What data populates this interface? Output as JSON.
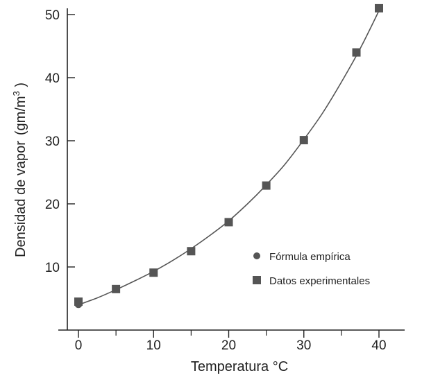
{
  "chart_data": {
    "type": "scatter",
    "xlabel": "Temperatura °C",
    "ylabel": "Densidad de vapor",
    "ylabel_unit_prefix": "(gm/m",
    "ylabel_unit_exp": "3",
    "ylabel_unit_suffix": " )",
    "xlim": [
      0,
      40
    ],
    "ylim": [
      0,
      50
    ],
    "x_ticks": [
      0,
      10,
      20,
      30,
      40
    ],
    "x_minor_ticks": [
      5,
      15,
      25,
      35
    ],
    "y_ticks": [
      10,
      20,
      30,
      40,
      50
    ],
    "grid": false,
    "legend_position": "right",
    "legend": [
      {
        "name": "Fórmula empírica",
        "marker": "circle"
      },
      {
        "name": "Datos experimentales",
        "marker": "square"
      }
    ],
    "series": [
      {
        "name": "Fórmula empírica",
        "type": "line",
        "x": [
          0,
          2.5,
          5,
          7.5,
          10,
          12.5,
          15,
          17.5,
          20,
          22.5,
          25,
          27.5,
          30,
          32.5,
          35,
          37.5,
          40
        ],
        "y": [
          4.0,
          5.1,
          6.4,
          7.8,
          9.3,
          11.0,
          12.9,
          15.0,
          17.3,
          20.0,
          23.0,
          26.3,
          30.2,
          34.4,
          39.3,
          44.6,
          50.6
        ]
      },
      {
        "name": "Datos experimentales",
        "type": "scatter",
        "marker": "square",
        "x": [
          0,
          5,
          10,
          15,
          20,
          25,
          30,
          37,
          40
        ],
        "y": [
          4.5,
          6.5,
          9.1,
          12.5,
          17.1,
          22.9,
          30.1,
          44.0,
          51.0
        ]
      },
      {
        "name": "Fórmula empírica",
        "type": "scatter",
        "marker": "circle",
        "x": [
          0
        ],
        "y": [
          4.1
        ]
      }
    ],
    "colors": {
      "axis": "#222222",
      "curve": "#555555",
      "marker": "#555555"
    }
  }
}
